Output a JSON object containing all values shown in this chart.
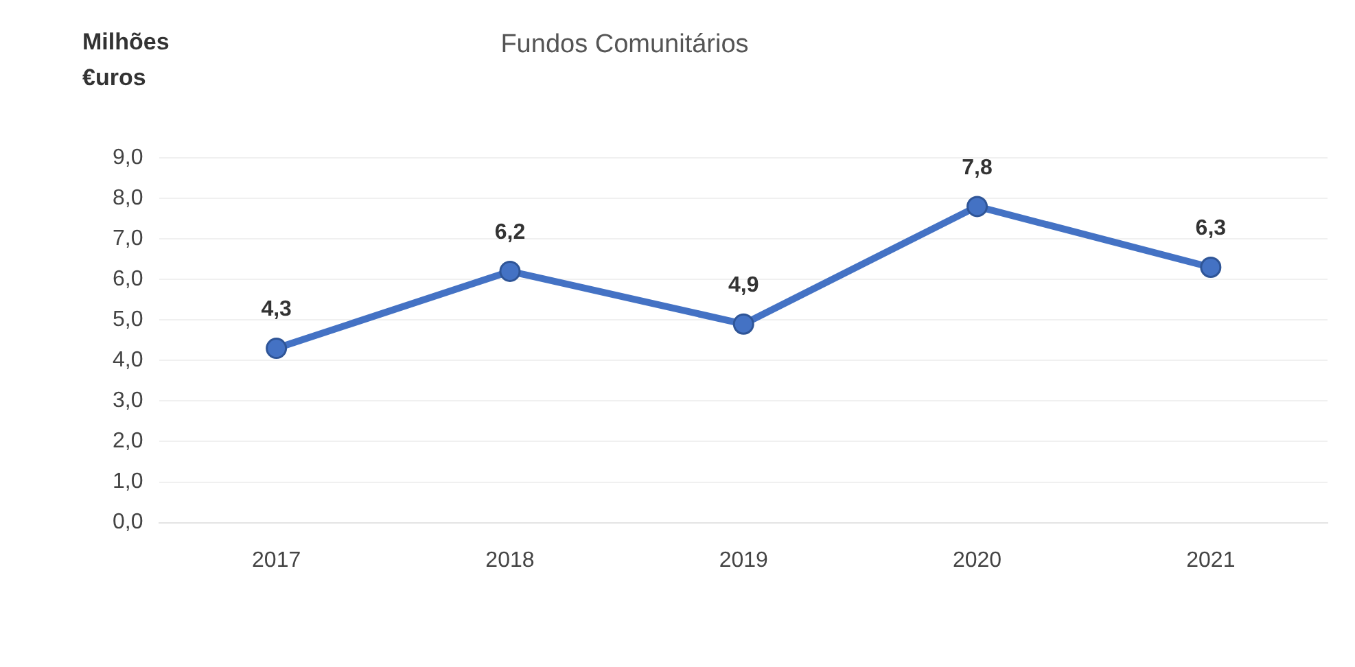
{
  "chart_data": {
    "type": "line",
    "title": "Fundos Comunitários",
    "ylabel": "Milhões €uros",
    "categories": [
      "2017",
      "2018",
      "2019",
      "2020",
      "2021"
    ],
    "series": [
      {
        "color": "#4472c4",
        "values": [
          4.3,
          6.2,
          4.9,
          7.8,
          6.3
        ]
      }
    ],
    "value_labels": [
      "4,3",
      "6,2",
      "4,9",
      "7,8",
      "6,3"
    ],
    "ylim": [
      0,
      9
    ],
    "yticks": [
      {
        "value": 0,
        "label": "0,0"
      },
      {
        "value": 1,
        "label": "1,0"
      },
      {
        "value": 2,
        "label": "2,0"
      },
      {
        "value": 3,
        "label": "3,0"
      },
      {
        "value": 4,
        "label": "4,0"
      },
      {
        "value": 5,
        "label": "5,0"
      },
      {
        "value": 6,
        "label": "6,0"
      },
      {
        "value": 7,
        "label": "7,0"
      },
      {
        "value": 8,
        "label": "8,0"
      },
      {
        "value": 9,
        "label": "9,0"
      }
    ],
    "grid": "y",
    "legend": false,
    "marker": "circle",
    "line_style": "solid"
  }
}
